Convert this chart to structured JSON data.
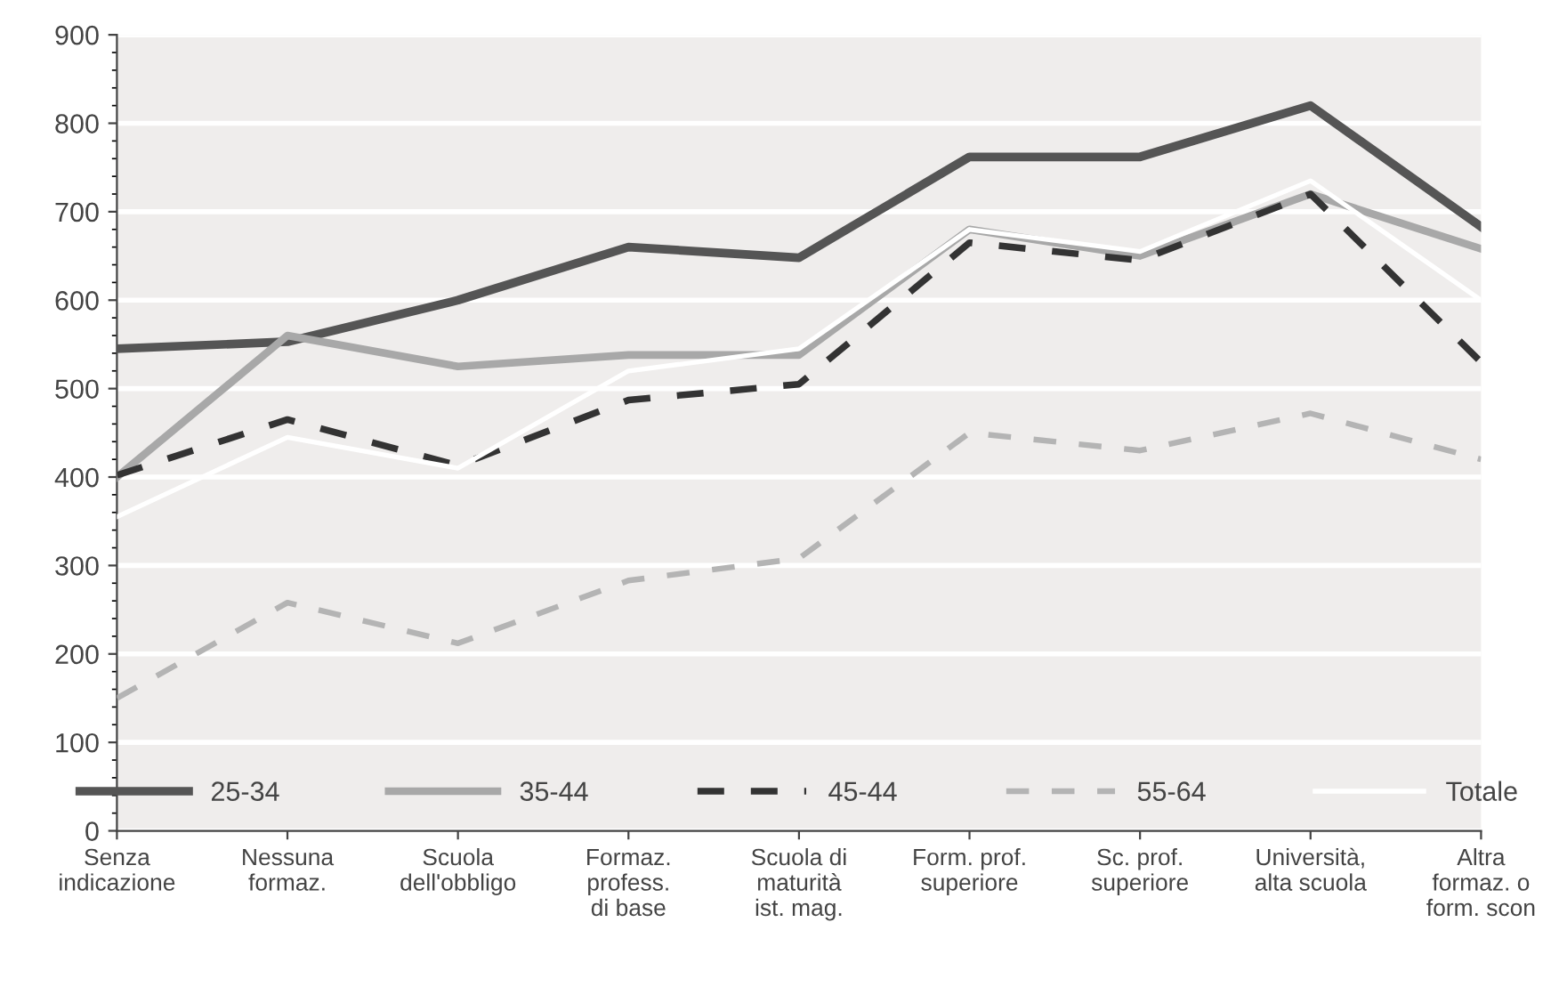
{
  "chart_data": {
    "type": "line",
    "categories": [
      "Senza\nindicazione",
      "Nessuna\nformaz.",
      "Scuola\ndell'obbligo",
      "Formaz.\nprofess.\ndi base",
      "Scuola di\nmaturità\nist. mag.",
      "Form. prof.\nsuperiore",
      "Sc. prof.\nsuperiore",
      "Università,\nalta scuola",
      "Altra\nformaz. o\nform. scon"
    ],
    "series": [
      {
        "name": "25-34",
        "color": "#555555",
        "line_style": "solid",
        "values": [
          545,
          553,
          600,
          660,
          648,
          762,
          762,
          820,
          683
        ]
      },
      {
        "name": "35-44",
        "color": "#a8a8a8",
        "line_style": "solid",
        "values": [
          400,
          560,
          525,
          538,
          538,
          680,
          650,
          720,
          658
        ]
      },
      {
        "name": "45-44",
        "color": "#333333",
        "line_style": "dashed",
        "values": [
          402,
          465,
          413,
          487,
          505,
          665,
          645,
          720,
          530
        ]
      },
      {
        "name": "55-64",
        "color": "#b4b4b4",
        "line_style": "dashed",
        "values": [
          150,
          258,
          212,
          283,
          308,
          450,
          430,
          472,
          420
        ]
      },
      {
        "name": "Totale",
        "color": "#ffffff",
        "line_style": "solid",
        "values": [
          355,
          445,
          410,
          520,
          545,
          680,
          655,
          735,
          600
        ]
      }
    ],
    "ylim": [
      0,
      900
    ],
    "yticks": [
      0,
      100,
      200,
      300,
      400,
      500,
      600,
      700,
      800,
      900
    ],
    "grid": "y",
    "legend": "bottom"
  }
}
